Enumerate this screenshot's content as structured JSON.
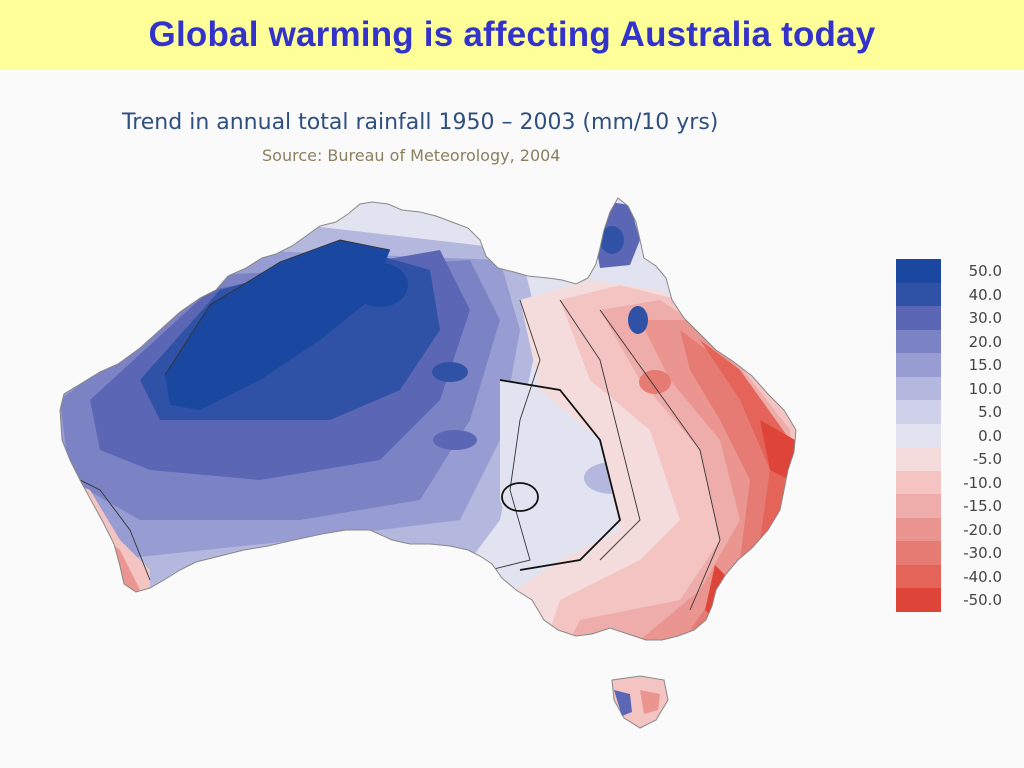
{
  "slide": {
    "title": "Global warming is affecting Australia today"
  },
  "map": {
    "title": "Trend in annual total rainfall 1950 – 2003 (mm/10 yrs)",
    "source": "Source: Bureau of Meteorology, 2004",
    "region": "Australia"
  },
  "legend": {
    "items": [
      {
        "label": "50.0",
        "color": "#1a47a0"
      },
      {
        "label": "40.0",
        "color": "#3052a6"
      },
      {
        "label": "30.0",
        "color": "#5b67b5"
      },
      {
        "label": "20.0",
        "color": "#7c83c4"
      },
      {
        "label": "15.0",
        "color": "#979dd2"
      },
      {
        "label": "10.0",
        "color": "#b4b8de"
      },
      {
        "label": "5.0",
        "color": "#cfd1ea"
      },
      {
        "label": "0.0",
        "color": "#e2e3f1"
      },
      {
        "label": "-5.0",
        "color": "#f4dcdc"
      },
      {
        "label": "-10.0",
        "color": "#f3c4c2"
      },
      {
        "label": "-15.0",
        "color": "#eeacaa"
      },
      {
        "label": "-20.0",
        "color": "#ea9590"
      },
      {
        "label": "-30.0",
        "color": "#e67b73"
      },
      {
        "label": "-40.0",
        "color": "#e46459"
      },
      {
        "label": "-50.0",
        "color": "#df4438"
      }
    ]
  }
}
